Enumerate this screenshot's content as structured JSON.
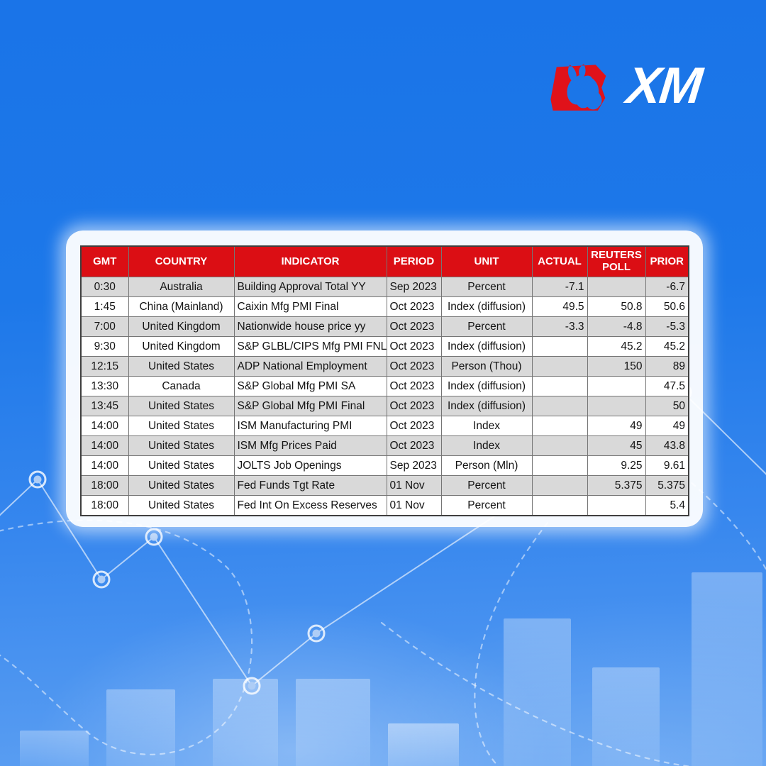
{
  "brand": {
    "logo_text": "XM",
    "logo_red": "#e0121a",
    "bull_icon": "bull-icon"
  },
  "colors": {
    "background_top": "#1a74e8",
    "background_bottom": "#5c9ff2",
    "table_header_bg": "#db0e14",
    "table_header_text": "#ffffff",
    "row_alt_bg": "#d9d9d9",
    "row_bg": "#ffffff",
    "cell_text": "#141414",
    "decor_line": "rgba(255,255,255,0.6)"
  },
  "chart_data": {
    "type": "table",
    "columns": [
      "GMT",
      "COUNTRY",
      "INDICATOR",
      "PERIOD",
      "UNIT",
      "ACTUAL",
      "REUTERS POLL",
      "PRIOR"
    ],
    "rows": [
      [
        "0:30",
        "Australia",
        "Building Approval Total YY",
        "Sep 2023",
        "Percent",
        "-7.1",
        "",
        "-6.7"
      ],
      [
        "1:45",
        "China (Mainland)",
        "Caixin Mfg PMI Final",
        "Oct 2023",
        "Index (diffusion)",
        "49.5",
        "50.8",
        "50.6"
      ],
      [
        "7:00",
        "United Kingdom",
        "Nationwide house price yy",
        "Oct 2023",
        "Percent",
        "-3.3",
        "-4.8",
        "-5.3"
      ],
      [
        "9:30",
        "United Kingdom",
        "S&P GLBL/CIPS Mfg PMI FNL",
        "Oct 2023",
        "Index (diffusion)",
        "",
        "45.2",
        "45.2"
      ],
      [
        "12:15",
        "United States",
        "ADP National Employment",
        "Oct 2023",
        "Person (Thou)",
        "",
        "150",
        "89"
      ],
      [
        "13:30",
        "Canada",
        "S&P Global Mfg PMI SA",
        "Oct 2023",
        "Index (diffusion)",
        "",
        "",
        "47.5"
      ],
      [
        "13:45",
        "United States",
        "S&P Global Mfg PMI Final",
        "Oct 2023",
        "Index (diffusion)",
        "",
        "",
        "50"
      ],
      [
        "14:00",
        "United States",
        "ISM Manufacturing PMI",
        "Oct 2023",
        "Index",
        "",
        "49",
        "49"
      ],
      [
        "14:00",
        "United States",
        "ISM Mfg Prices Paid",
        "Oct 2023",
        "Index",
        "",
        "45",
        "43.8"
      ],
      [
        "14:00",
        "United States",
        "JOLTS Job Openings",
        "Sep 2023",
        "Person (Mln)",
        "",
        "9.25",
        "9.61"
      ],
      [
        "18:00",
        "United States",
        "Fed Funds Tgt Rate",
        "01 Nov",
        "Percent",
        "",
        "5.375",
        "5.375"
      ],
      [
        "18:00",
        "United States",
        "Fed Int On Excess Reserves",
        "01 Nov",
        "Percent",
        "",
        "",
        "5.4"
      ]
    ]
  }
}
